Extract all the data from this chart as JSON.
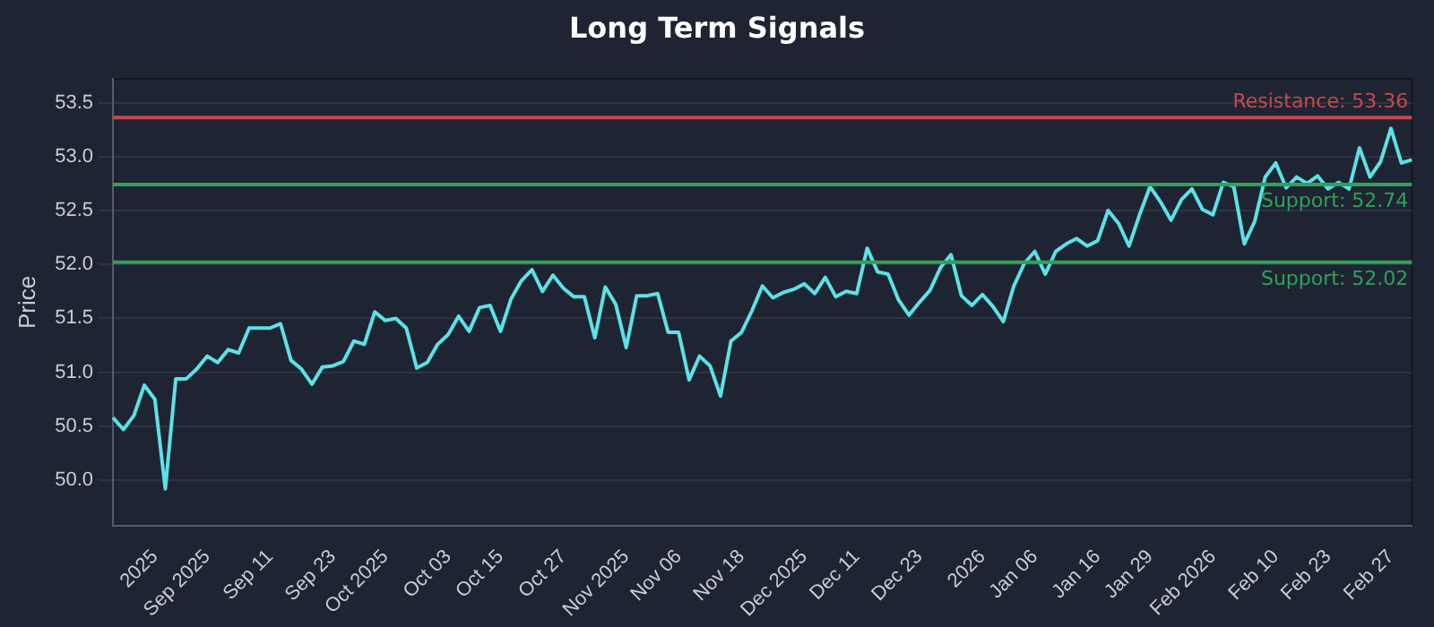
{
  "chart_data": {
    "type": "line",
    "title": "Long Term Signals",
    "ylabel": "Price",
    "categories": [
      null,
      null,
      null,
      null,
      "2025",
      null,
      null,
      null,
      null,
      "Sep 2025",
      null,
      null,
      null,
      null,
      null,
      "Sep 11",
      null,
      null,
      null,
      null,
      null,
      "Sep 23",
      null,
      null,
      null,
      null,
      "Oct 2025",
      null,
      null,
      null,
      null,
      null,
      "Oct 03",
      null,
      null,
      null,
      null,
      "Oct 15",
      null,
      null,
      null,
      null,
      null,
      "Oct 27",
      null,
      null,
      null,
      null,
      null,
      "Nov 2025",
      null,
      null,
      null,
      null,
      "Nov 06",
      null,
      null,
      null,
      null,
      null,
      "Nov 18",
      null,
      null,
      null,
      null,
      null,
      "Dec 2025",
      null,
      null,
      null,
      null,
      "Dec 11",
      null,
      null,
      null,
      null,
      null,
      "Dec 23",
      null,
      null,
      null,
      null,
      null,
      "2026",
      null,
      null,
      null,
      null,
      "Jan 06",
      null,
      null,
      null,
      null,
      null,
      "Jan 16",
      null,
      null,
      null,
      null,
      "Jan 29",
      null,
      null,
      null,
      null,
      null,
      "Feb 2026",
      null,
      null,
      null,
      null,
      null,
      "Feb 10",
      null,
      null,
      null,
      null,
      "Feb 23",
      null,
      null,
      null,
      null,
      null,
      "Feb 27",
      null,
      null
    ],
    "series": [
      {
        "color": "#5ce1e6",
        "values": [
          50.58,
          50.47,
          50.6,
          50.88,
          50.75,
          49.92,
          50.94,
          50.94,
          51.03,
          51.15,
          51.09,
          51.21,
          51.18,
          51.41,
          51.41,
          51.41,
          51.45,
          51.11,
          51.03,
          50.89,
          51.05,
          51.06,
          51.1,
          51.29,
          51.26,
          51.56,
          51.48,
          51.5,
          51.41,
          51.04,
          51.09,
          51.26,
          51.35,
          51.52,
          51.38,
          51.6,
          51.62,
          51.38,
          51.68,
          51.85,
          51.95,
          51.75,
          51.9,
          51.78,
          51.7,
          51.7,
          51.32,
          51.79,
          51.63,
          51.23,
          51.71,
          51.71,
          51.73,
          51.37,
          51.37,
          50.93,
          51.15,
          51.06,
          50.78,
          51.29,
          51.37,
          51.57,
          51.8,
          51.69,
          51.74,
          51.77,
          51.82,
          51.73,
          51.88,
          51.7,
          51.75,
          51.73,
          52.15,
          51.93,
          51.91,
          51.67,
          51.53,
          51.65,
          51.76,
          51.97,
          52.09,
          51.71,
          51.62,
          51.72,
          51.61,
          51.47,
          51.8,
          52.01,
          52.12,
          51.91,
          52.12,
          52.19,
          52.24,
          52.17,
          52.22,
          52.5,
          52.38,
          52.17,
          52.46,
          52.72,
          52.58,
          52.41,
          52.6,
          52.7,
          52.51,
          52.46,
          52.76,
          52.72,
          52.19,
          52.4,
          52.81,
          52.94,
          52.71,
          52.81,
          52.75,
          52.82,
          52.7,
          52.76,
          52.7,
          53.08,
          52.81,
          52.95,
          53.26,
          52.94,
          52.97
        ]
      }
    ],
    "ylim": [
      49.58,
      53.72
    ],
    "yticks": [
      {
        "value": 50,
        "label": "50.0"
      },
      50.5,
      {
        "value": 51,
        "label": "51.0"
      },
      51.5,
      {
        "value": 52,
        "label": "52.0"
      },
      52.5,
      {
        "value": 53,
        "label": "53.0"
      },
      53.5
    ],
    "grid": "y",
    "marker": "none",
    "line_style": "solid",
    "ref_lines": [
      {
        "axis": "y",
        "value": 53.36,
        "label": "Resistance: 53.36",
        "color": "#c9474f"
      },
      {
        "axis": "y",
        "value": 52.74,
        "label": "Support: 52.74",
        "color": "#2fa15a"
      },
      {
        "axis": "y",
        "value": 52.02,
        "label": "Support: 52.02",
        "color": "#2fa15a"
      }
    ]
  }
}
